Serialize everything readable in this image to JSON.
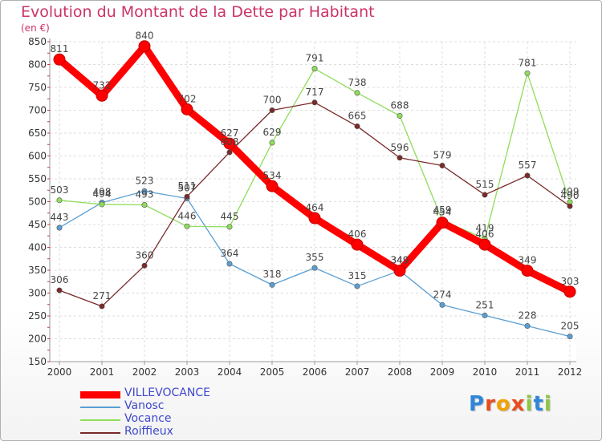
{
  "header": {
    "title": "Evolution du Montant de la Dette par Habitant",
    "unit": "(en €)"
  },
  "logo": {
    "text": "Proxiti",
    "letter_colors": [
      "#2f86d8",
      "#e84c1e",
      "#f2a200",
      "#e84c1e",
      "#8ec641",
      "#2f86d8",
      "#8ec641"
    ]
  },
  "chart_data": {
    "type": "line",
    "title": "Evolution du Montant de la Dette par Habitant",
    "subtitle": "(en €)",
    "xlabel": "",
    "ylabel": "",
    "x": [
      "2000",
      "2001",
      "2002",
      "2003",
      "2004",
      "2005",
      "2006",
      "2007",
      "2008",
      "2009",
      "2010",
      "2011",
      "2012"
    ],
    "ylim": [
      150,
      850
    ],
    "yticks": [
      150,
      200,
      250,
      300,
      350,
      400,
      450,
      500,
      550,
      600,
      650,
      700,
      750,
      800,
      850
    ],
    "grid": true,
    "legend_position": "bottom-left",
    "series": [
      {
        "name": "VILLEVOCANCE",
        "color": "#ff0000",
        "values": [
          811,
          732,
          840,
          702,
          627,
          534,
          464,
          406,
          349,
          454,
          406,
          349,
          303
        ]
      },
      {
        "name": "Vanosc",
        "color": "#5a9fd4",
        "values": [
          443,
          498,
          523,
          507,
          364,
          318,
          355,
          315,
          349,
          274,
          251,
          228,
          205
        ]
      },
      {
        "name": "Vocance",
        "color": "#8fdd5a",
        "values": [
          503,
          494,
          493,
          446,
          445,
          629,
          791,
          738,
          688,
          459,
          419,
          781,
          499
        ]
      },
      {
        "name": "Roiffieux",
        "color": "#7a2a2a",
        "values": [
          306,
          271,
          360,
          511,
          608,
          700,
          717,
          665,
          596,
          579,
          515,
          557,
          490
        ]
      }
    ]
  }
}
